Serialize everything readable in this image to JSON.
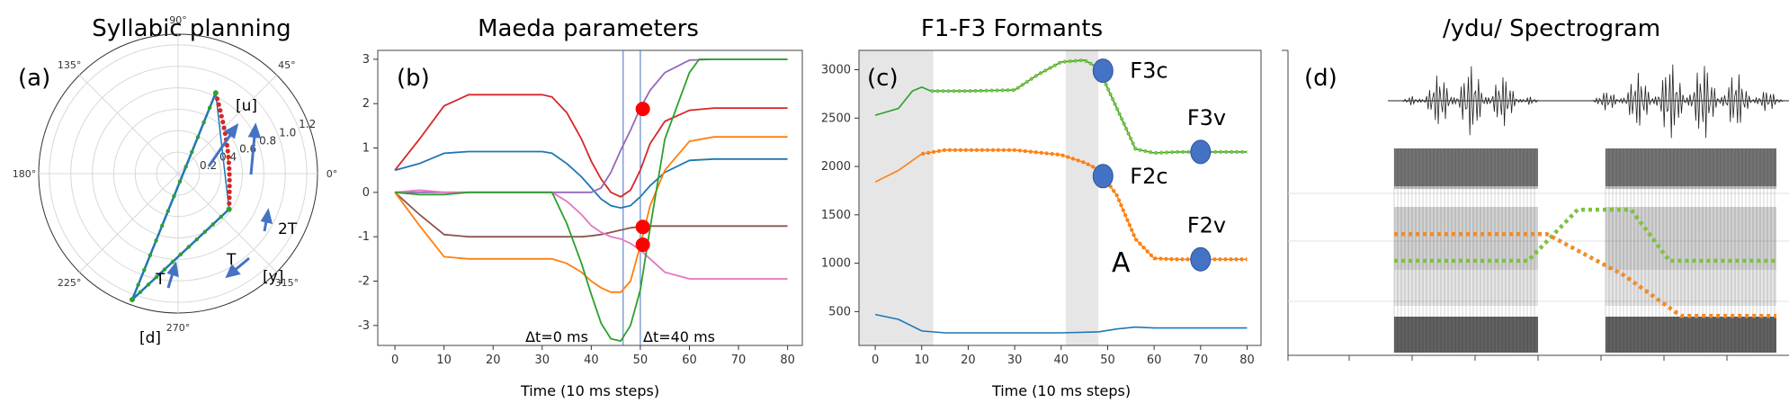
{
  "panels": {
    "a": {
      "title": "Syllabic planning",
      "tag": "(a)",
      "angle_labels": [
        "0°",
        "45°",
        "90°",
        "135°",
        "180°",
        "225°",
        "270°",
        "315°"
      ],
      "radial_ticks": [
        0.2,
        0.4,
        0.6,
        0.8,
        1.0,
        1.2
      ],
      "point_labels": {
        "u": "[u]",
        "y": "[y]",
        "d": "[d]"
      },
      "arrow_labels": {
        "t1": "T",
        "t2": "T",
        "t3": "2T"
      },
      "colors": {
        "trajectory": "#1f77b4",
        "syllable": "#2ca02c",
        "transition": "#d62728",
        "arrows": "#4472c4"
      }
    },
    "b": {
      "tag": "(b)"
    },
    "c": {
      "tag": "(c)"
    },
    "d": {
      "title": "/ydu/ Spectrogram",
      "tag": "(d)"
    }
  },
  "chart_data": [
    {
      "id": "a",
      "type": "scatter",
      "title": "Syllabic planning",
      "projection": "polar",
      "rlim": [
        0,
        1.3
      ],
      "points": {
        "d": {
          "angle_deg": 250,
          "r": 1.25
        },
        "u": {
          "angle_deg": 65,
          "r": 0.83
        },
        "y": {
          "angle_deg": 325,
          "r": 0.58
        }
      },
      "segments": [
        [
          "d",
          "u"
        ],
        [
          "u",
          "y"
        ],
        [
          "y",
          "d"
        ]
      ]
    },
    {
      "id": "b",
      "type": "line",
      "title": "Maeda parameters",
      "xlabel": "Time (10 ms steps)",
      "xticks": [
        0,
        10,
        20,
        30,
        40,
        50,
        60,
        70,
        80
      ],
      "yticks": [
        -3,
        -2,
        -1,
        0,
        1,
        2,
        3
      ],
      "xlim": [
        -3.5,
        83
      ],
      "ylim": [
        -3.45,
        3.2
      ],
      "series": [
        {
          "name": "red",
          "color": "#d62728",
          "x": [
            0,
            5,
            10,
            15,
            20,
            25,
            30,
            32,
            35,
            38,
            40,
            42,
            44,
            46,
            48,
            50,
            52,
            55,
            60,
            65,
            70,
            75,
            80
          ],
          "y": [
            0.5,
            1.2,
            1.95,
            2.2,
            2.2,
            2.2,
            2.2,
            2.15,
            1.8,
            1.2,
            0.7,
            0.3,
            0.0,
            -0.1,
            0.05,
            0.5,
            1.1,
            1.6,
            1.85,
            1.9,
            1.9,
            1.9,
            1.9
          ]
        },
        {
          "name": "blue",
          "color": "#1f77b4",
          "x": [
            0,
            5,
            10,
            15,
            20,
            25,
            30,
            32,
            35,
            38,
            40,
            42,
            44,
            46,
            48,
            50,
            52,
            55,
            60,
            65,
            70,
            75,
            80
          ],
          "y": [
            0.5,
            0.65,
            0.88,
            0.92,
            0.92,
            0.92,
            0.92,
            0.88,
            0.65,
            0.35,
            0.1,
            -0.15,
            -0.3,
            -0.35,
            -0.3,
            -0.1,
            0.15,
            0.45,
            0.72,
            0.75,
            0.75,
            0.75,
            0.75
          ]
        },
        {
          "name": "purple",
          "color": "#9467bd",
          "x": [
            0,
            5,
            10,
            15,
            20,
            25,
            30,
            32,
            35,
            38,
            40,
            42,
            44,
            46,
            48,
            50,
            52,
            55,
            60,
            65,
            70,
            75,
            80
          ],
          "y": [
            0.0,
            0.0,
            0.0,
            0.0,
            0.0,
            0.0,
            0.0,
            0.0,
            0.0,
            0.0,
            0.0,
            0.1,
            0.45,
            0.95,
            1.4,
            1.9,
            2.3,
            2.7,
            2.98,
            3.0,
            3.0,
            3.0,
            3.0
          ]
        },
        {
          "name": "brown",
          "color": "#8c564b",
          "x": [
            0,
            5,
            10,
            15,
            20,
            25,
            30,
            32,
            35,
            38,
            40,
            42,
            44,
            46,
            48,
            50,
            52,
            55,
            60,
            65,
            70,
            75,
            80
          ],
          "y": [
            0.0,
            -0.5,
            -0.95,
            -1.0,
            -1.0,
            -1.0,
            -1.0,
            -1.0,
            -1.0,
            -1.0,
            -0.98,
            -0.95,
            -0.9,
            -0.85,
            -0.8,
            -0.77,
            -0.76,
            -0.76,
            -0.76,
            -0.76,
            -0.76,
            -0.76,
            -0.76
          ]
        },
        {
          "name": "orange",
          "color": "#ff7f0e",
          "x": [
            0,
            5,
            10,
            15,
            20,
            25,
            30,
            32,
            35,
            38,
            40,
            42,
            44,
            46,
            48,
            50,
            52,
            55,
            60,
            65,
            70,
            75,
            80
          ],
          "y": [
            0.0,
            -0.75,
            -1.45,
            -1.5,
            -1.5,
            -1.5,
            -1.5,
            -1.5,
            -1.6,
            -1.8,
            -2.0,
            -2.15,
            -2.25,
            -2.25,
            -2.0,
            -1.2,
            -0.3,
            0.5,
            1.15,
            1.25,
            1.25,
            1.25,
            1.25
          ]
        },
        {
          "name": "pink",
          "color": "#e377c2",
          "x": [
            0,
            5,
            10,
            15,
            20,
            25,
            30,
            32,
            35,
            38,
            40,
            42,
            44,
            46,
            48,
            50,
            52,
            55,
            60,
            65,
            70,
            75,
            80
          ],
          "y": [
            0.0,
            0.05,
            0.0,
            0.0,
            0.0,
            0.0,
            0.0,
            0.0,
            -0.2,
            -0.5,
            -0.75,
            -0.9,
            -1.0,
            -1.05,
            -1.15,
            -1.3,
            -1.5,
            -1.8,
            -1.95,
            -1.95,
            -1.95,
            -1.95,
            -1.95
          ]
        },
        {
          "name": "green",
          "color": "#2ca02c",
          "x": [
            0,
            5,
            10,
            15,
            20,
            25,
            30,
            32,
            35,
            38,
            40,
            42,
            44,
            46,
            48,
            50,
            52,
            55,
            60,
            62,
            65,
            70,
            75,
            80
          ],
          "y": [
            0.0,
            -0.05,
            -0.05,
            0.0,
            0.0,
            0.0,
            0.0,
            0.0,
            -0.7,
            -1.6,
            -2.3,
            -2.95,
            -3.3,
            -3.35,
            -3.0,
            -2.2,
            -0.8,
            1.2,
            2.7,
            3.0,
            3.0,
            3.0,
            3.0,
            3.0
          ]
        }
      ],
      "vlines": [
        46.5,
        50
      ],
      "markers": [
        {
          "x": 50.5,
          "y": 1.88
        },
        {
          "x": 50.5,
          "y": -0.78
        },
        {
          "x": 50.5,
          "y": -1.18
        }
      ],
      "annotations": [
        "Δt=0 ms",
        "Δt=40 ms"
      ]
    },
    {
      "id": "c",
      "type": "line",
      "title": "F1-F3 Formants",
      "xlabel": "Time (10 ms steps)",
      "xticks": [
        0,
        10,
        20,
        30,
        40,
        50,
        60,
        70,
        80
      ],
      "yticks": [
        500,
        1000,
        1500,
        2000,
        2500,
        3000
      ],
      "xlim": [
        -3.5,
        83
      ],
      "ylim": [
        150,
        3200
      ],
      "shaded": [
        [
          -3.5,
          12.5
        ],
        [
          41,
          48
        ]
      ],
      "series": [
        {
          "name": "F1",
          "color": "#1f77b4",
          "x": [
            0,
            5,
            10,
            15,
            20,
            30,
            40,
            48,
            52,
            56,
            60,
            70,
            80
          ],
          "y": [
            470,
            420,
            300,
            280,
            280,
            280,
            280,
            290,
            320,
            340,
            330,
            330,
            330
          ]
        },
        {
          "name": "F2",
          "color": "#ff7f0e",
          "x": [
            0,
            5,
            10,
            15,
            20,
            30,
            40,
            45,
            48,
            52,
            56,
            60,
            65,
            70,
            80
          ],
          "y": [
            1840,
            1960,
            2130,
            2170,
            2170,
            2170,
            2120,
            2040,
            1970,
            1700,
            1250,
            1050,
            1040,
            1040,
            1040
          ]
        },
        {
          "name": "F3",
          "color": "#2ca02c",
          "x": [
            0,
            5,
            8,
            10,
            12,
            15,
            20,
            30,
            35,
            40,
            45,
            48,
            52,
            56,
            60,
            65,
            70,
            80
          ],
          "y": [
            2530,
            2600,
            2780,
            2820,
            2780,
            2780,
            2780,
            2790,
            2950,
            3080,
            3100,
            3020,
            2600,
            2180,
            2140,
            2150,
            2150,
            2150
          ]
        }
      ],
      "targets": [
        {
          "label": "F3c",
          "x": 49,
          "y": 2990
        },
        {
          "label": "F2c",
          "x": 49,
          "y": 1900
        },
        {
          "label": "F3v",
          "x": 70,
          "y": 2150
        },
        {
          "label": "F2v",
          "x": 70,
          "y": 1040
        }
      ],
      "annotation": "A"
    },
    {
      "id": "d",
      "type": "heatmap",
      "title": "/ydu/ Spectrogram",
      "overlay_series": [
        {
          "name": "F3 track",
          "color": "#7dc242",
          "points": [
            [
              0,
              0.55
            ],
            [
              0.35,
              0.55
            ],
            [
              0.48,
              0.3
            ],
            [
              0.62,
              0.3
            ],
            [
              0.72,
              0.55
            ],
            [
              1,
              0.55
            ]
          ]
        },
        {
          "name": "F2 track",
          "color": "#f08c2a",
          "points": [
            [
              0,
              0.42
            ],
            [
              0.4,
              0.42
            ],
            [
              0.6,
              0.62
            ],
            [
              0.75,
              0.82
            ],
            [
              1,
              0.82
            ]
          ]
        }
      ]
    }
  ]
}
